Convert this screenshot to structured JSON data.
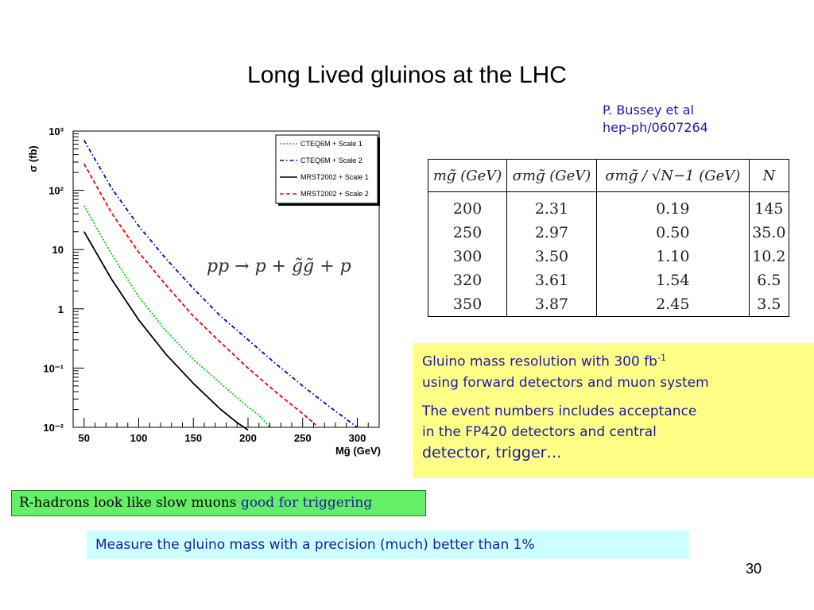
{
  "slide": {
    "title": "Long Lived gluinos at the LHC",
    "reference": [
      "P. Bussey et al",
      "hep-ph/0607264"
    ],
    "page_number": "30"
  },
  "table": {
    "headers": [
      "mɡ̃ (GeV)",
      "σmɡ̃ (GeV)",
      "σmɡ̃ / √N−1 (GeV)",
      "N"
    ],
    "rows": [
      [
        "200",
        "2.31",
        "0.19",
        "145"
      ],
      [
        "250",
        "2.97",
        "0.50",
        "35.0"
      ],
      [
        "300",
        "3.50",
        "1.10",
        "10.2"
      ],
      [
        "320",
        "3.61",
        "1.54",
        "6.5"
      ],
      [
        "350",
        "3.87",
        "2.45",
        "3.5"
      ]
    ]
  },
  "yellow_box": {
    "line1": "Gluino mass resolution with 300 fb",
    "line1_sup": "-1",
    "line2": "using  forward detectors and muon system",
    "line3": "The event numbers includes acceptance",
    "line4": "in the FP420 detectors and central",
    "line5": "detector, trigger…"
  },
  "green_box": {
    "text": "R-hadrons look like slow muons ",
    "highlight": "good for triggering"
  },
  "cyan_box": {
    "text": "Measure the gluino mass with a precision (much) better than 1%"
  },
  "colors": {
    "title": "#000000",
    "blue_text": "#1a1aa6",
    "yellow_box": "#ffff88",
    "green_box": "#66ee66",
    "cyan_box": "#ccffff"
  },
  "chart_data": {
    "type": "line",
    "ylabel": "σ (fb)",
    "xlabel": "Mɡ̃ (GeV)",
    "xlim": [
      40,
      320
    ],
    "ylim": [
      0.01,
      1000
    ],
    "y_scale": "log",
    "x_ticks": [
      "50",
      "100",
      "150",
      "200",
      "250",
      "300"
    ],
    "y_ticks": [
      "10³",
      "10²",
      "10",
      "1",
      "10⁻¹",
      "10⁻²"
    ],
    "annotation": "pp → p + g̃g̃ + p",
    "legend_position": "top-right",
    "series": [
      {
        "name": "CTEQ6M + Scale 1",
        "color": "#00cc00",
        "dash": "dotted",
        "x": [
          50,
          75,
          100,
          125,
          150,
          175,
          200,
          210,
          220
        ],
        "y": [
          55,
          8.5,
          1.6,
          0.42,
          0.14,
          0.055,
          0.022,
          0.016,
          0.01
        ]
      },
      {
        "name": "CTEQ6M + Scale 2",
        "color": "#0000cc",
        "dash": "dashdot",
        "x": [
          50,
          75,
          100,
          125,
          150,
          175,
          200,
          225,
          250,
          275,
          300
        ],
        "y": [
          700,
          110,
          25,
          7,
          2.2,
          0.75,
          0.3,
          0.12,
          0.05,
          0.022,
          0.01
        ]
      },
      {
        "name": "MRST2002 + Scale 1",
        "color": "#000000",
        "dash": "solid",
        "x": [
          50,
          75,
          100,
          125,
          150,
          175,
          190,
          200
        ],
        "y": [
          20,
          3.2,
          0.65,
          0.17,
          0.055,
          0.02,
          0.012,
          0.009
        ]
      },
      {
        "name": "MRST2002 + Scale 2",
        "color": "#ee0000",
        "dash": "dashed",
        "x": [
          50,
          75,
          100,
          125,
          150,
          175,
          200,
          225,
          250,
          262
        ],
        "y": [
          280,
          42,
          9,
          2.5,
          0.75,
          0.27,
          0.1,
          0.04,
          0.017,
          0.011
        ]
      }
    ]
  }
}
